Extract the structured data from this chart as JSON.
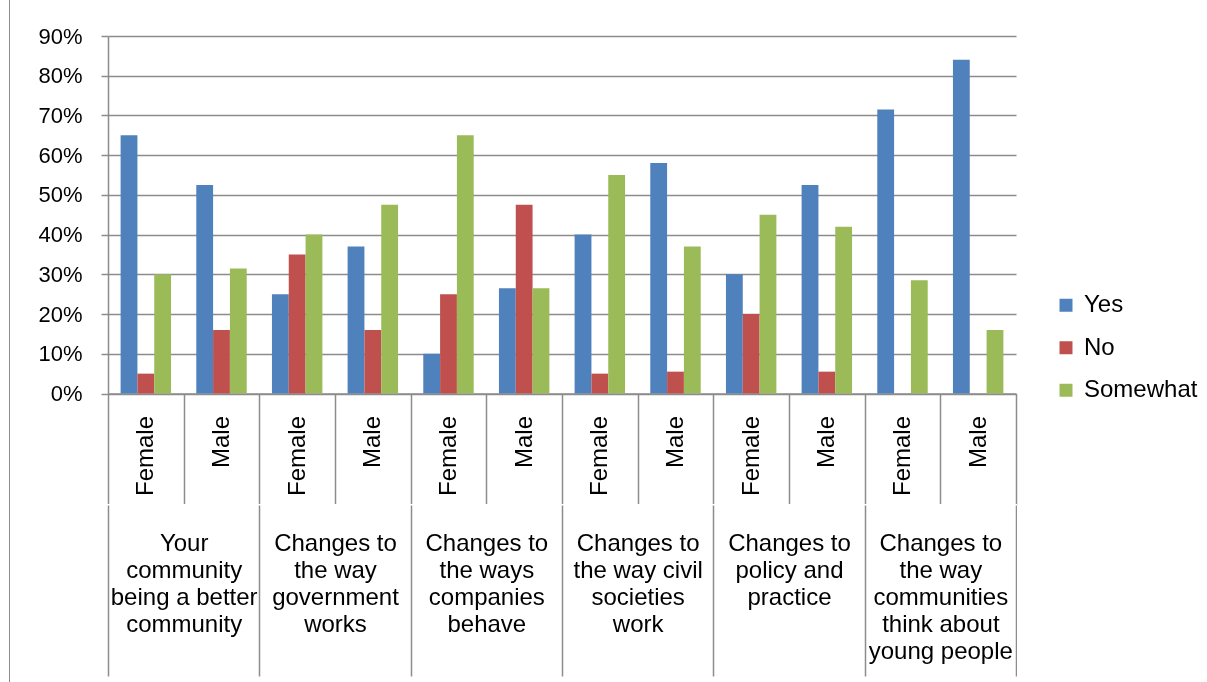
{
  "chart_data": {
    "type": "bar",
    "categories": [
      "Female",
      "Male",
      "Female",
      "Male",
      "Female",
      "Male",
      "Female",
      "Male",
      "Female",
      "Male",
      "Female",
      "Male"
    ],
    "annotations": [
      "Your community being a better community",
      "Changes to the way government works",
      "Changes to the ways companies behave",
      "Changes to the way civil societies work",
      "Changes to policy and practice",
      "Changes to the way communities think about young people"
    ],
    "series": [
      {
        "name": "Yes",
        "color": "#4f81bd",
        "values": [
          65,
          52.5,
          25,
          37,
          10,
          26.5,
          40,
          58,
          30,
          52.5,
          71.5,
          84
        ]
      },
      {
        "name": "No",
        "color": "#c0504d",
        "values": [
          5,
          16,
          35,
          16,
          25,
          47.5,
          5,
          5.5,
          20,
          5.5,
          null,
          null
        ]
      },
      {
        "name": "Somewhat",
        "color": "#9bbb59",
        "values": [
          30,
          31.5,
          40,
          47.5,
          65,
          26.5,
          55,
          37,
          45,
          42,
          28.5,
          16
        ]
      }
    ],
    "ylim": [
      0,
      90
    ],
    "yticks": [
      {
        "value": 0,
        "label": "0%"
      },
      {
        "value": 10,
        "label": "10%"
      },
      {
        "value": 20,
        "label": "20%"
      },
      {
        "value": 30,
        "label": "30%"
      },
      {
        "value": 40,
        "label": "40%"
      },
      {
        "value": 50,
        "label": "50%"
      },
      {
        "value": 60,
        "label": "60%"
      },
      {
        "value": 70,
        "label": "70%"
      },
      {
        "value": 80,
        "label": "80%"
      },
      {
        "value": 90,
        "label": "90%"
      }
    ],
    "grid": "y",
    "legend": "right"
  }
}
